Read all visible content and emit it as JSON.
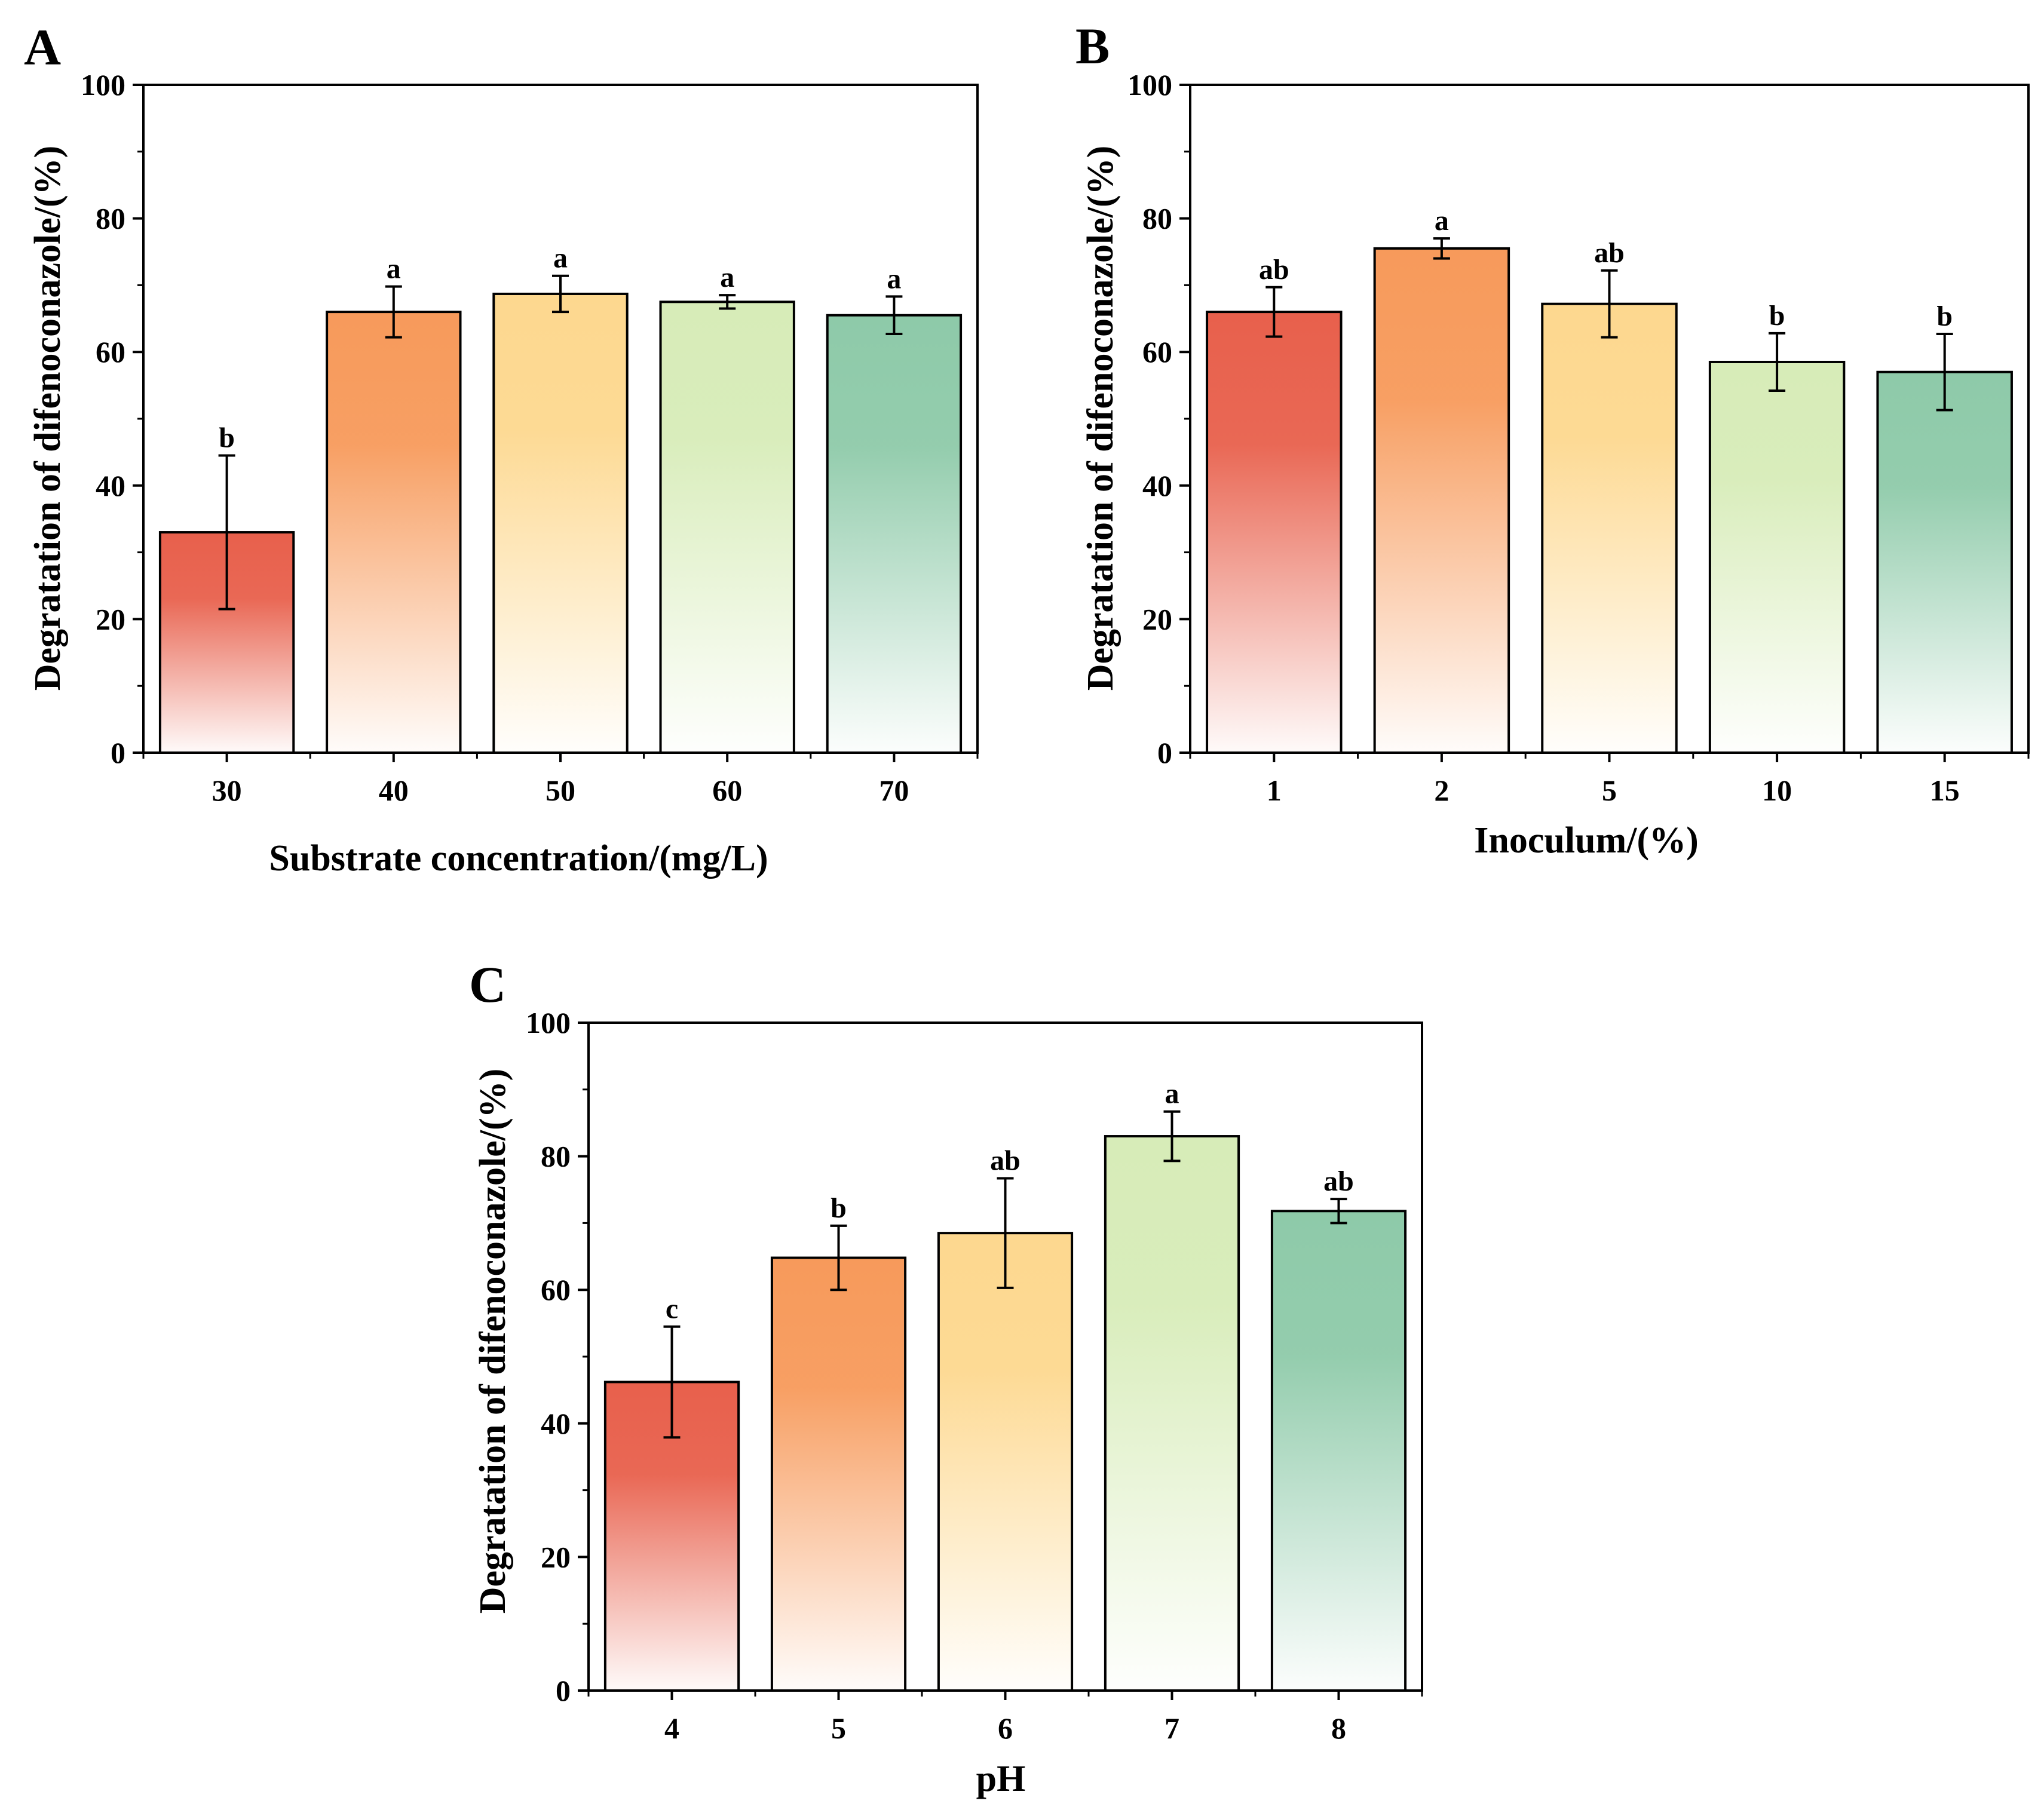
{
  "chart_data": [
    {
      "type": "bar",
      "panel_label": "A",
      "title": "",
      "xlabel": "Substrate concentration/(mg/L)",
      "ylabel": "Degratation of difenoconazole/(%)",
      "ylim": [
        0,
        100
      ],
      "yticks": [
        "0",
        "20",
        "40",
        "60",
        "80",
        "100"
      ],
      "categories": [
        "30",
        "40",
        "50",
        "60",
        "70"
      ],
      "values": [
        33,
        66,
        68.7,
        67.5,
        65.5
      ],
      "errors": [
        11.5,
        3.8,
        2.7,
        1,
        2.8
      ],
      "significance": [
        "b",
        "a",
        "a",
        "a",
        "a"
      ],
      "bar_colors": [
        "#e8604c",
        "#f79a5b",
        "#fdd88f",
        "#d7ecb8",
        "#8ecaa9"
      ],
      "grid": false,
      "legend": "none"
    },
    {
      "type": "bar",
      "panel_label": "B",
      "title": "",
      "xlabel": "Inoculum/(%)",
      "ylabel": "Degratation of difenoconazole/(%)",
      "ylim": [
        0,
        100
      ],
      "yticks": [
        "0",
        "20",
        "40",
        "60",
        "80",
        "100"
      ],
      "categories": [
        "1",
        "2",
        "5",
        "10",
        "15"
      ],
      "values": [
        66,
        75.5,
        67.2,
        58.5,
        57
      ],
      "errors": [
        3.7,
        1.5,
        5,
        4.3,
        5.7
      ],
      "significance": [
        "ab",
        "a",
        "ab",
        "b",
        "b"
      ],
      "bar_colors": [
        "#e8604c",
        "#f79a5b",
        "#fdd88f",
        "#d7ecb8",
        "#8ecaa9"
      ],
      "grid": false,
      "legend": "none"
    },
    {
      "type": "bar",
      "panel_label": "C",
      "title": "",
      "xlabel": "pH",
      "ylabel": "Degratation of difenoconazole/(%)",
      "ylim": [
        0,
        100
      ],
      "yticks": [
        "0",
        "20",
        "40",
        "60",
        "80",
        "100"
      ],
      "categories": [
        "4",
        "5",
        "6",
        "7",
        "8"
      ],
      "values": [
        46.2,
        64.8,
        68.5,
        83,
        71.8
      ],
      "errors": [
        8.3,
        4.8,
        8.2,
        3.7,
        1.8
      ],
      "significance": [
        "c",
        "b",
        "ab",
        "a",
        "ab"
      ],
      "bar_colors": [
        "#e8604c",
        "#f79a5b",
        "#fdd88f",
        "#d7ecb8",
        "#8ecaa9"
      ],
      "grid": false,
      "legend": "none"
    }
  ]
}
